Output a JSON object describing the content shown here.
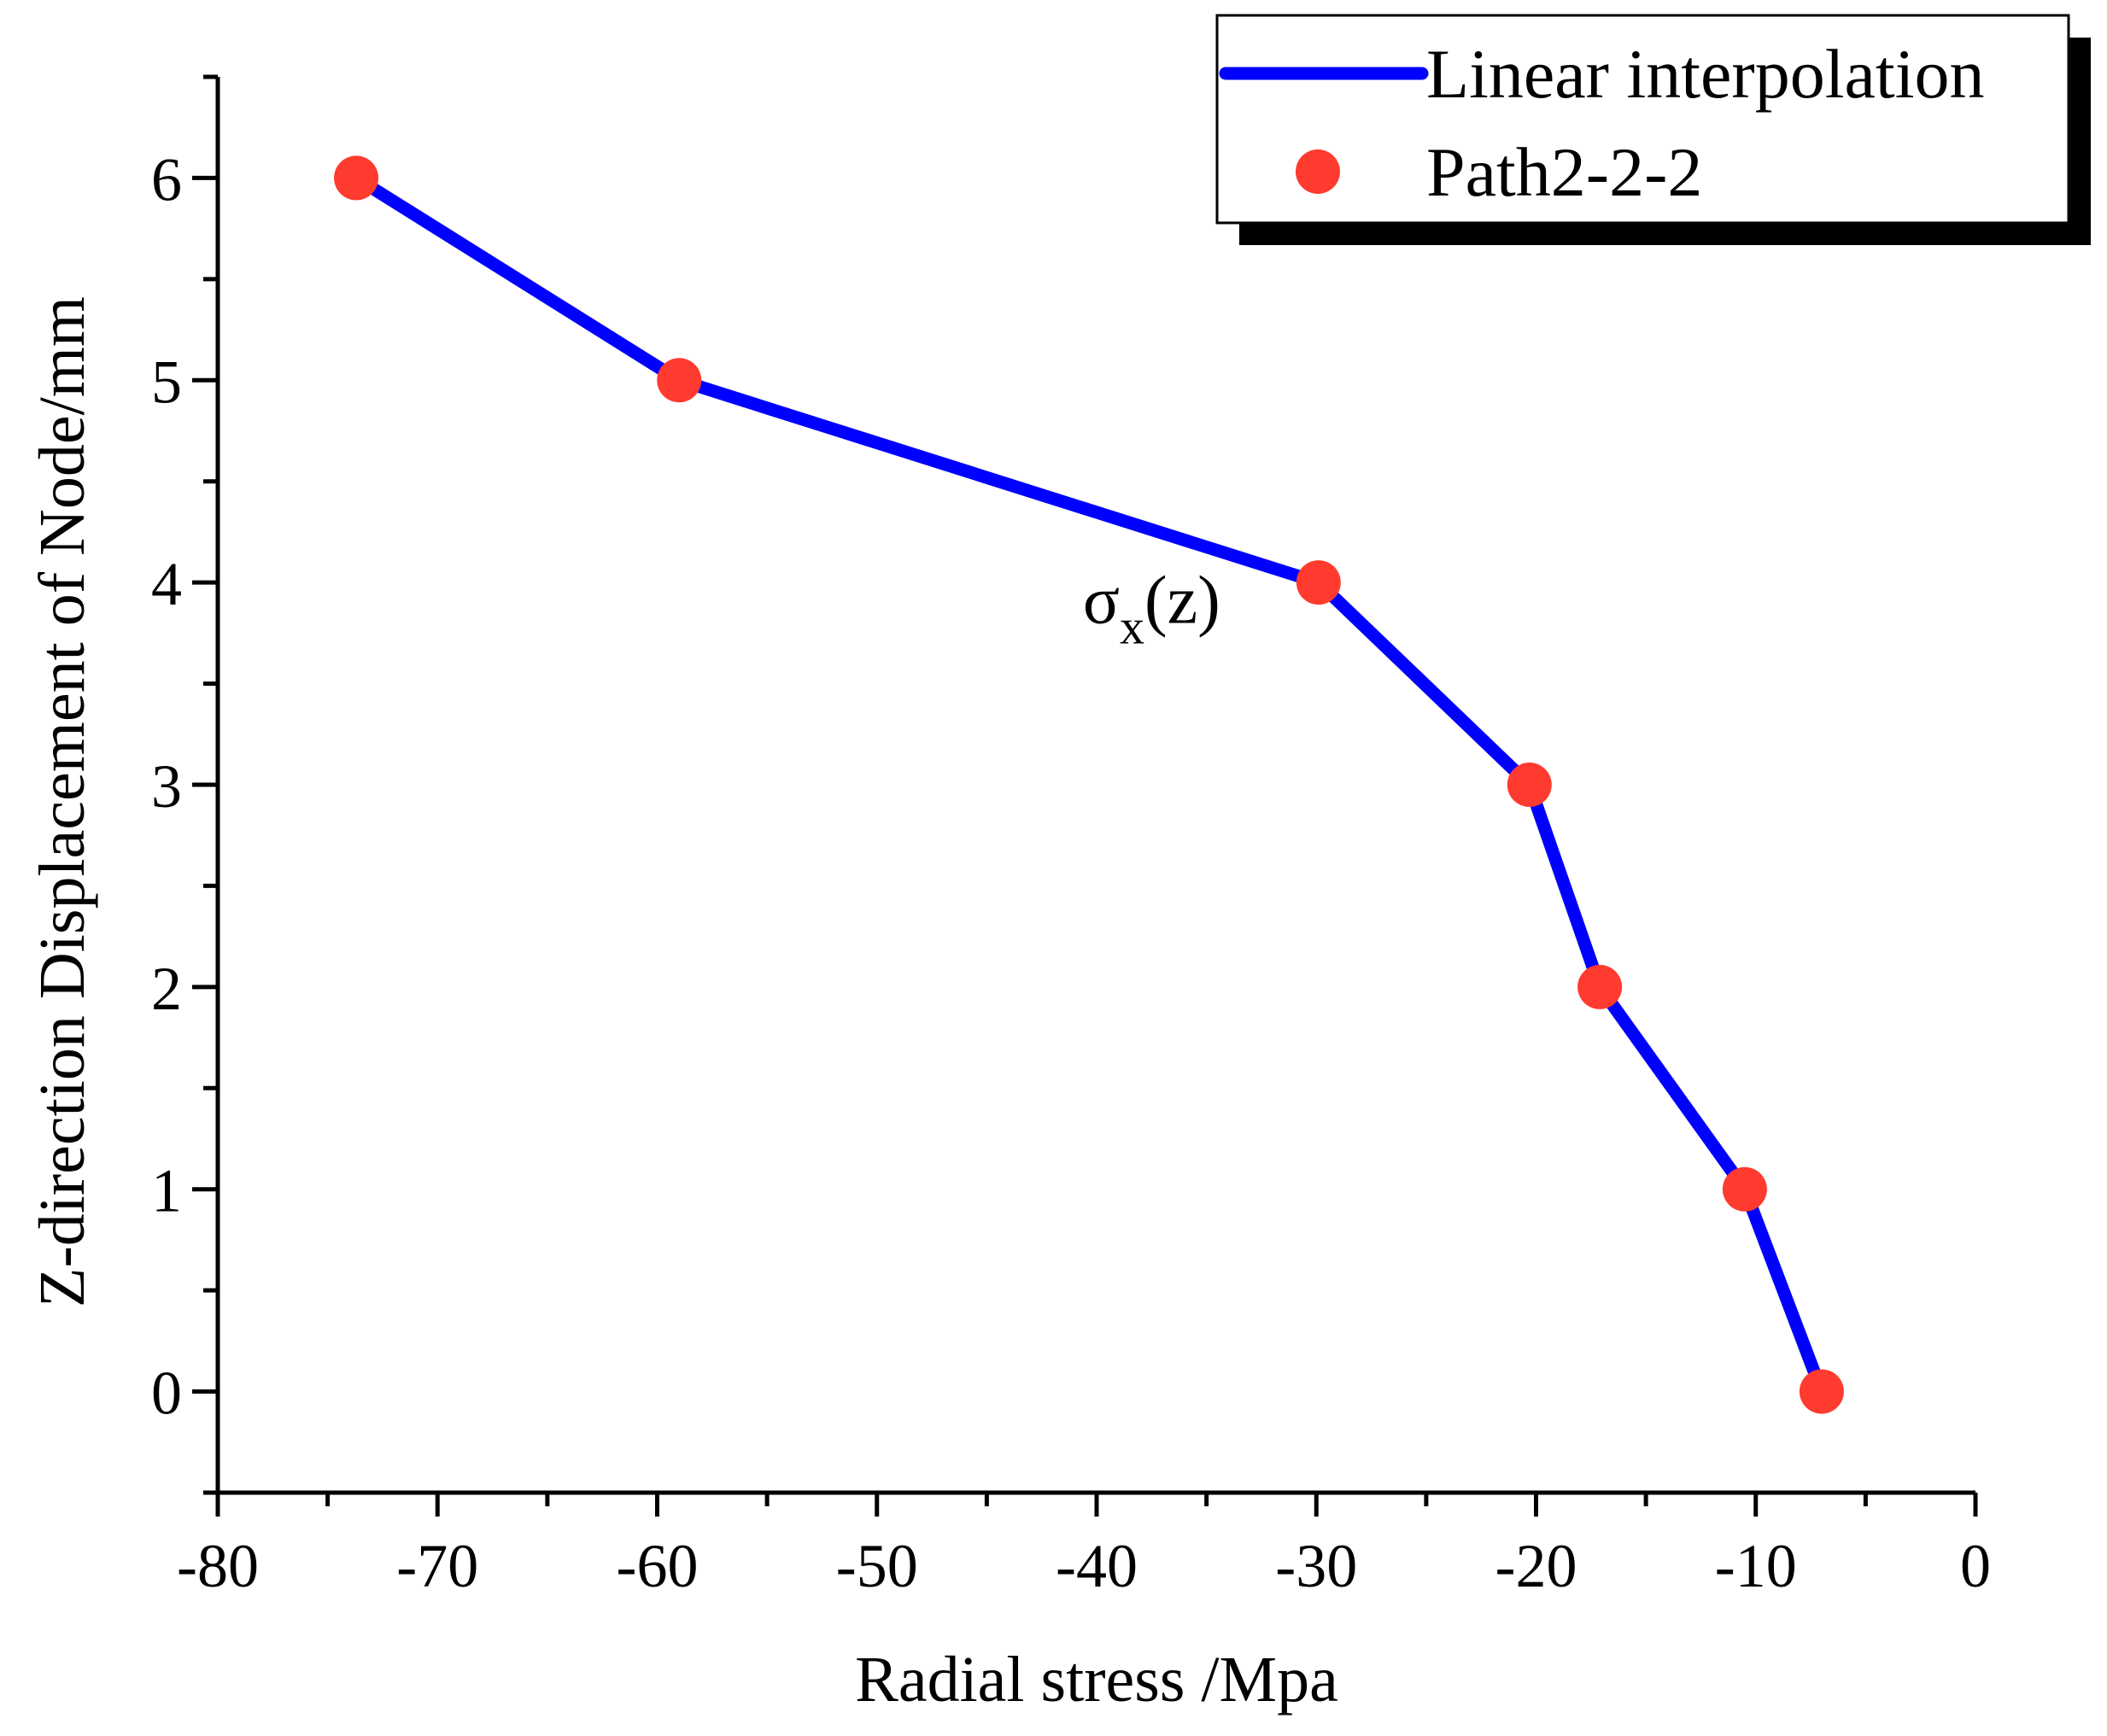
{
  "chart_data": {
    "type": "line",
    "title": "",
    "xlabel": "Radial stress /Mpa",
    "ylabel": "Z-direction Displacement of Node/mm",
    "xlim": [
      -80,
      0
    ],
    "ylim": [
      -0.5,
      6.5
    ],
    "xticks": [
      -80,
      -70,
      -60,
      -50,
      -40,
      -30,
      -20,
      -10,
      0
    ],
    "yticks": [
      0,
      1,
      2,
      3,
      4,
      5,
      6
    ],
    "x_minor_step": 5,
    "y_minor_step": 0.5,
    "grid": false,
    "legend_position": "top-right",
    "series": [
      {
        "name": "Linear interpolation",
        "style": "line",
        "color": "#0000ff",
        "x": [
          -73.7,
          -59.0,
          -29.9,
          -20.3,
          -17.1,
          -10.5,
          -7.0
        ],
        "y": [
          6,
          5,
          4,
          3,
          2,
          1,
          0
        ]
      },
      {
        "name": "Path2-2-2",
        "style": "marker",
        "color": "#ff3b2f",
        "x": [
          -73.7,
          -59.0,
          -29.9,
          -20.3,
          -17.1,
          -10.5,
          -7.0
        ],
        "y": [
          6,
          5,
          4,
          3,
          2,
          1,
          0
        ]
      }
    ],
    "annotations": [
      {
        "text": "σ",
        "subscript": "x",
        "suffix": "(z)",
        "x": -37.5,
        "y": 3.8
      }
    ]
  }
}
